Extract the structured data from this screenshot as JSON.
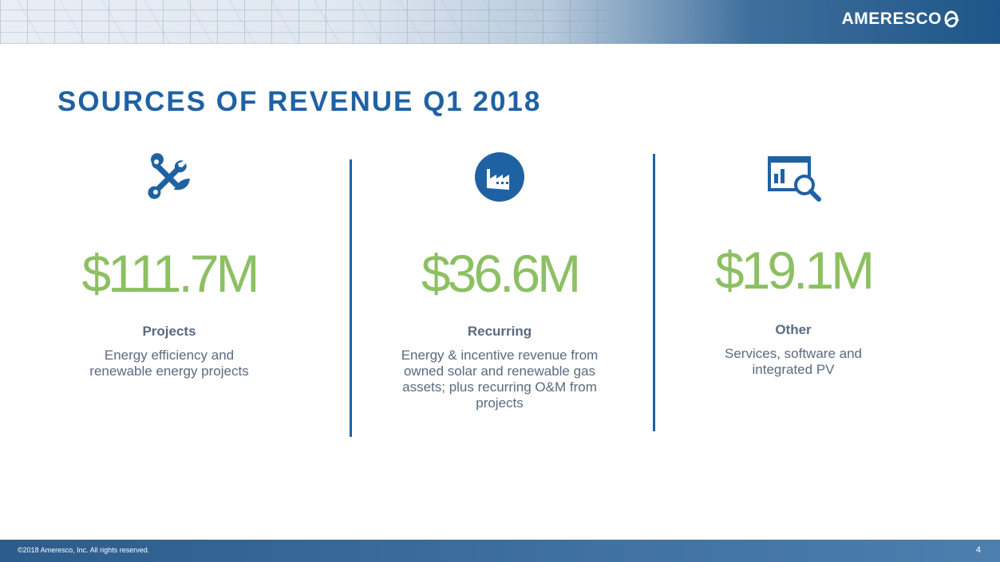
{
  "header": {
    "logo_text": "AMERESCO",
    "logo_icon": "ameresco-swirl-icon"
  },
  "title": "SOURCES OF REVENUE Q1 2018",
  "columns": [
    {
      "icon": "wrench-leaf-icon",
      "amount": "$111.7M",
      "label": "Projects",
      "description": "Energy efficiency and renewable energy projects"
    },
    {
      "icon": "factory-icon",
      "amount": "$36.6M",
      "label": "Recurring",
      "description": "Energy & incentive revenue from owned solar and renewable gas assets; plus recurring O&M from projects"
    },
    {
      "icon": "chart-magnifier-icon",
      "amount": "$19.1M",
      "label": "Other",
      "description": "Services, software and integrated PV"
    }
  ],
  "footer": {
    "copyright": "©2018 Ameresco, Inc. All rights reserved.",
    "page_number": "4"
  },
  "colors": {
    "title_blue": "#1f62a3",
    "amount_green": "#8cc063",
    "text_gray": "#5a6b7f"
  }
}
